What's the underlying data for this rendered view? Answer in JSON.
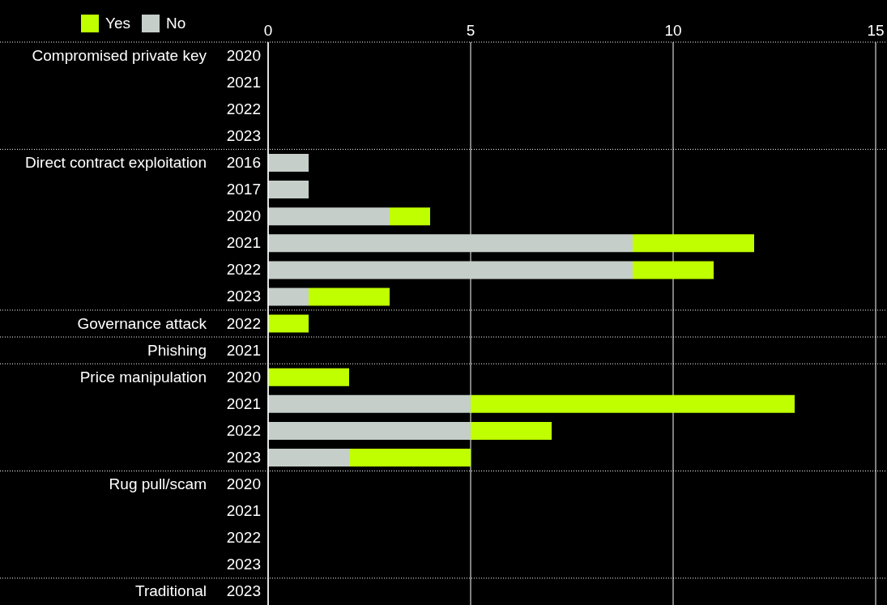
{
  "chart_data": {
    "type": "bar",
    "orientation": "horizontal",
    "stacked": true,
    "categories": [
      "2020",
      "2021",
      "2022",
      "2023",
      "2016",
      "2017",
      "2020",
      "2021",
      "2022",
      "2023",
      "2022",
      "2021",
      "2020",
      "2021",
      "2022",
      "2023",
      "2020",
      "2021",
      "2022",
      "2023",
      "2023"
    ],
    "annotations": [
      "Compromised private key",
      "Direct contract exploitation",
      "Governance attack",
      "Phishing",
      "Price manipulation",
      "Rug pull/scam",
      "Traditional"
    ],
    "series": [
      {
        "name": "No",
        "color": "#c5cec8",
        "values": [
          null,
          null,
          null,
          null,
          1,
          1,
          3,
          9,
          9,
          1,
          null,
          null,
          null,
          5,
          5,
          2,
          null,
          null,
          null,
          null,
          null
        ]
      },
      {
        "name": "Yes",
        "color": "#bfff00",
        "values": [
          null,
          null,
          null,
          null,
          null,
          null,
          1,
          3,
          2,
          2,
          1,
          null,
          2,
          8,
          2,
          3,
          null,
          null,
          null,
          null,
          null
        ]
      }
    ],
    "xlim": [
      0,
      15
    ],
    "xticks": [
      0,
      5,
      10,
      15
    ],
    "grid": "x",
    "legend": "top left"
  }
}
